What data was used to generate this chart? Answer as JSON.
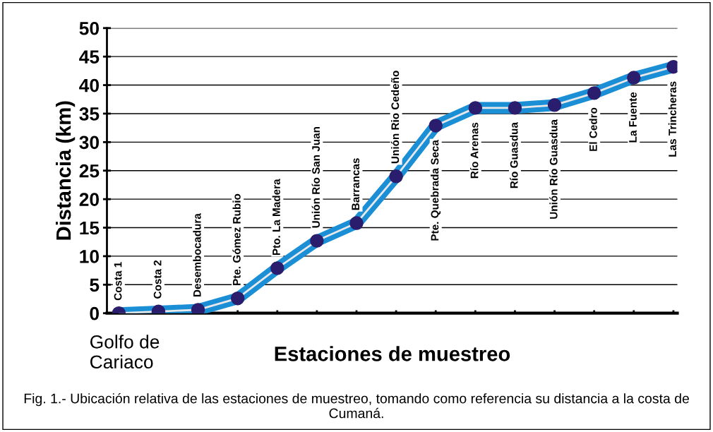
{
  "chart_data": {
    "type": "line",
    "ylabel": "Distancia (km)",
    "xlabel": "Estaciones de muestreo",
    "categories": [
      "Costa 1",
      "Costa 2",
      "Desembocadura",
      "Pte. Gómez Rubio",
      "Pto. La Madera",
      "Unión Río San Juan",
      "Barrancas",
      "Unión Rio Cedeño",
      "Pte. Quebrada Seca",
      "Río Arenas",
      "Río Guasdua",
      "Unión Río Guasdua",
      "El Cedro",
      "La Fuente",
      "Las Trincheras"
    ],
    "series": [
      {
        "color": "#1a8fd6",
        "values": [
          0,
          0.3,
          0.6,
          2.6,
          7.9,
          12.7,
          15.8,
          24,
          32.9,
          36,
          36,
          36.5,
          38.6,
          41.3,
          43.2
        ]
      }
    ],
    "ylim": [
      0,
      50
    ],
    "yticks": [
      0,
      5,
      10,
      15,
      20,
      25,
      30,
      35,
      40,
      45,
      50
    ],
    "grid": "y",
    "marker": "circle",
    "line_style": "solid",
    "annotations": [
      {
        "text": "Golfo de Cariaco",
        "x": "Costa 1",
        "y": 0
      },
      "Fig. 1.- Ubicación relativa de las estaciones de muestreo, tomando como referencia su distancia a la costa de Cumaná."
    ]
  }
}
